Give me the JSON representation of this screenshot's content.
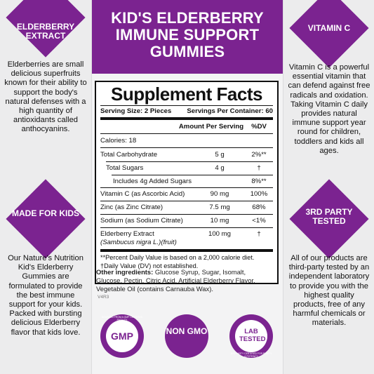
{
  "left": {
    "top": {
      "badge": "ELDERBERRY EXTRACT",
      "text": "Elderberries are small delicious superfruits known for their ability to support the body's natural defenses with a high quantity of antioxidants called anthocyanins."
    },
    "bottom": {
      "badge": "MADE FOR KIDS",
      "text": "Our Nature's Nutrition Kid's Elderberry Gummies are formulated to provide the best immune support for your kids. Packed with bursting delicious Elderberry flavor that kids love."
    }
  },
  "right": {
    "top": {
      "badge": "VITAMIN C",
      "text": "Vitamin C is a powerful essential vitamin that can defend against free radicals and oxidation. Taking Vitamin C daily provides natural immune support year round for children, toddlers and kids all ages."
    },
    "bottom": {
      "badge": "3RD PARTY TESTED",
      "text": "All of our products are third-party tested by an independent laboratory to provide you with the highest quality products, free of any harmful chemicals or materials."
    }
  },
  "header": {
    "title": "KID'S ELDERBERRY IMMUNE SUPPORT GUMMIES"
  },
  "facts": {
    "title": "Supplement Facts",
    "serving_size": "Serving Size: 2 Pieces",
    "servings_per_container": "Servings Per Container: 60",
    "col_amount": "Amount Per Serving",
    "col_dv": "%DV",
    "rows": [
      {
        "label": "Calories: 18",
        "amount": "",
        "dv": ""
      },
      {
        "label": "Total Carbohydrate",
        "amount": "5 g",
        "dv": "2%**"
      },
      {
        "label": "Total Sugars",
        "amount": "4 g",
        "dv": "†"
      },
      {
        "label": "Includes 4g Added Sugars",
        "amount": "",
        "dv": "8%**"
      },
      {
        "label": "Vitamin C (as Ascorbic Acid)",
        "amount": "90 mg",
        "dv": "100%"
      },
      {
        "label": "Zinc (as Zinc Citrate)",
        "amount": "7.5 mg",
        "dv": "68%"
      },
      {
        "label": "Sodium (as Sodium Citrate)",
        "amount": "10 mg",
        "dv": "<1%"
      },
      {
        "label": "Elderberry Extract",
        "amount": "100 mg",
        "dv": "†"
      }
    ],
    "elderberry_sub": "(Sambucus nigra L.)(fruit)",
    "footnote1": "**Percent Daily Value is based on a 2,000 calorie diet.",
    "footnote2": "†Daily Value (DV) not established.",
    "ingredients_label": "Other ingredients:",
    "ingredients": "Glucose Syrup, Sugar, Isomalt, Glucose, Pectin, Citric Acid, Artificial Elderberry Flavor, Vegetable Oil (contains Carnauba Wax).",
    "version": "V4R3"
  },
  "seals": {
    "gmp": "GMP",
    "gmp_ring": "SOURCED FROM A GMP CERTIFIED FACILITY",
    "nongmo": "NON GMO",
    "lab": "LAB TESTED",
    "lab_ring": "3RD PARTY CERTIFIED FOR PURITY & POTENCY"
  },
  "colors": {
    "brand": "#7b2390"
  }
}
